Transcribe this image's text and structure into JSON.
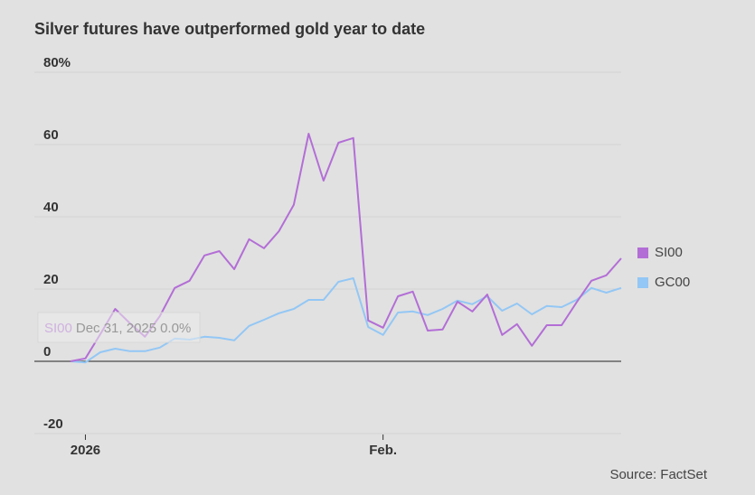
{
  "chart_data": {
    "type": "line",
    "title": "Silver futures have outperformed gold year to date",
    "source": "Source: FactSet",
    "categories": [
      null,
      "2026",
      null,
      null,
      null,
      null,
      null,
      null,
      null,
      null,
      null,
      null,
      null,
      null,
      null,
      null,
      null,
      null,
      null,
      null,
      null,
      "Feb.",
      null,
      null,
      null,
      null,
      null,
      null,
      null,
      null,
      null,
      null,
      null,
      null,
      null,
      null,
      null,
      null
    ],
    "series": [
      {
        "name": "SI00",
        "color": "#b36ed6",
        "values": [
          0,
          0.8,
          7.5,
          14.5,
          10.5,
          6.8,
          12.5,
          20.3,
          22.3,
          29.3,
          30.5,
          25.5,
          33.8,
          31.3,
          36,
          43.3,
          63,
          50,
          60.5,
          61.8,
          11.3,
          9.3,
          18,
          19.3,
          8.5,
          8.8,
          16.5,
          13.8,
          18.5,
          7.3,
          10.3,
          4.3,
          10,
          10,
          16.3,
          22.3,
          23.8,
          28.5
        ]
      },
      {
        "name": "GC00",
        "color": "#93c7f5",
        "values": [
          0,
          -0.3,
          2.5,
          3.5,
          2.8,
          2.8,
          3.8,
          6.3,
          6,
          6.8,
          6.5,
          5.8,
          9.8,
          11.5,
          13.3,
          14.5,
          17,
          17,
          22,
          23,
          9.5,
          7.3,
          13.5,
          13.8,
          12.8,
          14.5,
          16.8,
          15.8,
          18,
          14,
          16,
          13,
          15.3,
          15,
          17,
          20.3,
          19,
          20.3
        ]
      }
    ],
    "ylim": [
      -20,
      80
    ],
    "yticks": [
      -20,
      0,
      20,
      40,
      60,
      {
        "value": 80,
        "label": "80%"
      }
    ],
    "grid": true,
    "legend": "right",
    "tooltip": {
      "series": "SI00",
      "date": "Dec 31, 2025",
      "value": "0.0%"
    }
  }
}
